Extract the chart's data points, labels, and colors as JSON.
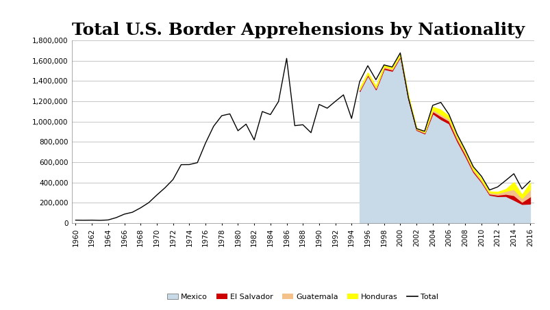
{
  "title": "Total U.S. Border Apprehensions by Nationality",
  "years": [
    1960,
    1961,
    1962,
    1963,
    1964,
    1965,
    1966,
    1967,
    1968,
    1969,
    1970,
    1971,
    1972,
    1973,
    1974,
    1975,
    1976,
    1977,
    1978,
    1979,
    1980,
    1981,
    1982,
    1983,
    1984,
    1985,
    1986,
    1987,
    1988,
    1989,
    1990,
    1991,
    1992,
    1993,
    1994,
    1995,
    1996,
    1997,
    1998,
    1999,
    2000,
    2001,
    2002,
    2003,
    2004,
    2005,
    2006,
    2007,
    2008,
    2009,
    2010,
    2011,
    2012,
    2013,
    2014,
    2015,
    2016
  ],
  "total": [
    30000,
    29000,
    30000,
    28000,
    32000,
    55000,
    89000,
    108000,
    151000,
    202000,
    277000,
    348000,
    430000,
    576000,
    577000,
    596000,
    788000,
    954000,
    1058000,
    1076000,
    910000,
    975000,
    820000,
    1099000,
    1069000,
    1198000,
    1622000,
    960000,
    969000,
    891000,
    1169000,
    1132000,
    1199000,
    1263000,
    1031000,
    1394000,
    1550000,
    1412000,
    1558000,
    1537000,
    1676000,
    1235000,
    931000,
    905000,
    1160000,
    1189000,
    1071000,
    876000,
    723000,
    556000,
    463000,
    327000,
    357000,
    421000,
    487000,
    337000,
    415000
  ],
  "mexico": [
    29000,
    28000,
    29000,
    27000,
    31000,
    54000,
    88000,
    107000,
    150000,
    200000,
    275000,
    345000,
    427000,
    572000,
    574000,
    592000,
    783000,
    950000,
    1053000,
    1071000,
    905000,
    970000,
    815000,
    1093000,
    1063000,
    1192000,
    1615000,
    953000,
    963000,
    885000,
    1163000,
    1125000,
    1192000,
    1256000,
    1024000,
    1300000,
    1453000,
    1316000,
    1517000,
    1499000,
    1636000,
    1224000,
    917000,
    882000,
    1080000,
    1023000,
    981000,
    808000,
    661000,
    503000,
    404000,
    279000,
    265000,
    267000,
    229000,
    188000,
    192000
  ],
  "el_salvador": [
    0,
    0,
    0,
    0,
    0,
    0,
    0,
    0,
    0,
    0,
    0,
    0,
    0,
    0,
    0,
    0,
    0,
    0,
    0,
    0,
    0,
    0,
    0,
    0,
    0,
    0,
    0,
    0,
    0,
    0,
    0,
    0,
    0,
    0,
    0,
    11000,
    11000,
    12000,
    14000,
    12000,
    10000,
    11000,
    7000,
    8000,
    22000,
    30000,
    26000,
    21000,
    20000,
    14000,
    11000,
    11000,
    14000,
    21000,
    46000,
    22000,
    70000
  ],
  "guatemala": [
    0,
    0,
    0,
    0,
    0,
    0,
    0,
    0,
    0,
    0,
    0,
    0,
    0,
    0,
    0,
    0,
    0,
    0,
    0,
    0,
    0,
    0,
    0,
    0,
    0,
    0,
    0,
    0,
    0,
    0,
    0,
    0,
    0,
    0,
    0,
    10000,
    10000,
    11000,
    12000,
    11000,
    8000,
    9000,
    6000,
    7000,
    17000,
    20000,
    20000,
    20000,
    17000,
    12000,
    12000,
    12000,
    16000,
    29000,
    60000,
    36000,
    70000
  ],
  "honduras": [
    0,
    0,
    0,
    0,
    0,
    0,
    0,
    0,
    0,
    0,
    0,
    0,
    0,
    0,
    0,
    0,
    0,
    0,
    0,
    0,
    0,
    0,
    0,
    0,
    0,
    0,
    0,
    0,
    0,
    0,
    0,
    0,
    0,
    0,
    0,
    8000,
    8000,
    9000,
    10000,
    9000,
    7000,
    8000,
    5000,
    6000,
    26000,
    43000,
    27000,
    23000,
    18000,
    13000,
    11000,
    10000,
    13000,
    18000,
    68000,
    33000,
    65000
  ],
  "ylim": [
    0,
    1800000
  ],
  "yticks": [
    0,
    200000,
    400000,
    600000,
    800000,
    1000000,
    1200000,
    1400000,
    1600000,
    1800000
  ],
  "ytick_labels": [
    "0",
    "200,000",
    "400,000",
    "600,000",
    "800,000",
    "1,000,000",
    "1,200,000",
    "1,400,000",
    "1,600,000",
    "1,800,000"
  ],
  "xticks": [
    1960,
    1962,
    1964,
    1966,
    1968,
    1970,
    1972,
    1974,
    1976,
    1978,
    1980,
    1982,
    1984,
    1986,
    1988,
    1990,
    1992,
    1994,
    1996,
    1998,
    2000,
    2002,
    2004,
    2006,
    2008,
    2010,
    2012,
    2014,
    2016
  ],
  "mexico_fill_color": "#c8d9e8",
  "mexico_fill_start_year": 1995,
  "el_salvador_color": "#cc0000",
  "guatemala_color": "#f5c18a",
  "honduras_color": "#ffff00",
  "total_color": "#000000",
  "background_color": "#ffffff",
  "plot_bg_color": "#ffffff",
  "grid_color": "#bbbbbb",
  "legend_labels": [
    "Mexico",
    "El Salvador",
    "Guatemala",
    "Honduras",
    "Total"
  ],
  "title_fontsize": 18,
  "tick_fontsize": 7.5
}
